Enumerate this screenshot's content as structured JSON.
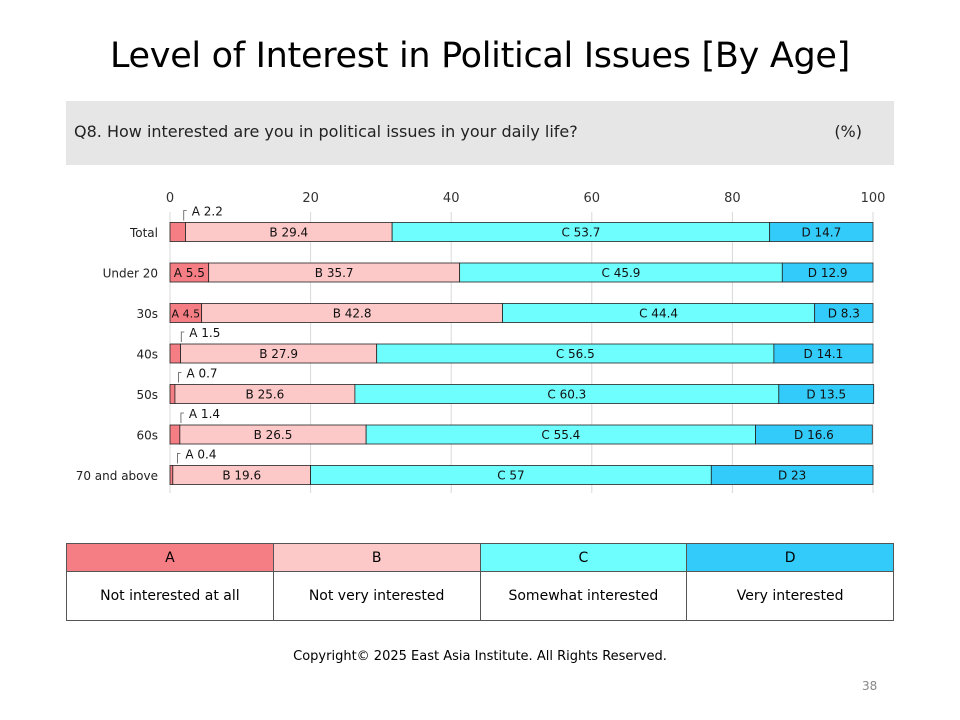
{
  "title": "Level of Interest in Political Issues [By Age]",
  "question": "Q8. How interested are you in political issues in your daily life?",
  "unit": "(%)",
  "chart_data": {
    "type": "bar",
    "orientation": "horizontal",
    "stacked": true,
    "xlim": [
      0,
      100
    ],
    "xticks": [
      0,
      20,
      40,
      60,
      80,
      100
    ],
    "grid": true,
    "categories": [
      "Total",
      "Under 20",
      "30s",
      "40s",
      "50s",
      "60s",
      "70 and above"
    ],
    "series": [
      {
        "name": "A",
        "color": "#f57e84",
        "values": [
          2.2,
          5.5,
          4.5,
          1.5,
          0.7,
          1.4,
          0.4
        ]
      },
      {
        "name": "B",
        "color": "#fdc8c8",
        "values": [
          29.4,
          35.7,
          42.8,
          27.9,
          25.6,
          26.5,
          19.6
        ]
      },
      {
        "name": "C",
        "color": "#6ffefe",
        "values": [
          53.7,
          45.9,
          44.4,
          56.5,
          60.3,
          55.4,
          57
        ]
      },
      {
        "name": "D",
        "color": "#33cbfa",
        "values": [
          14.7,
          12.9,
          8.3,
          14.1,
          13.5,
          16.6,
          23
        ]
      }
    ]
  },
  "legend": {
    "headers": [
      {
        "key": "A",
        "color": "#f57e84"
      },
      {
        "key": "B",
        "color": "#fdc8c8"
      },
      {
        "key": "C",
        "color": "#6ffefe"
      },
      {
        "key": "D",
        "color": "#33cbfa"
      }
    ],
    "descriptions": [
      "Not interested at all",
      "Not very interested",
      "Somewhat interested",
      "Very interested"
    ]
  },
  "copyright": "Copyright© 2025 East Asia Institute. All Rights Reserved.",
  "page_number": "38"
}
